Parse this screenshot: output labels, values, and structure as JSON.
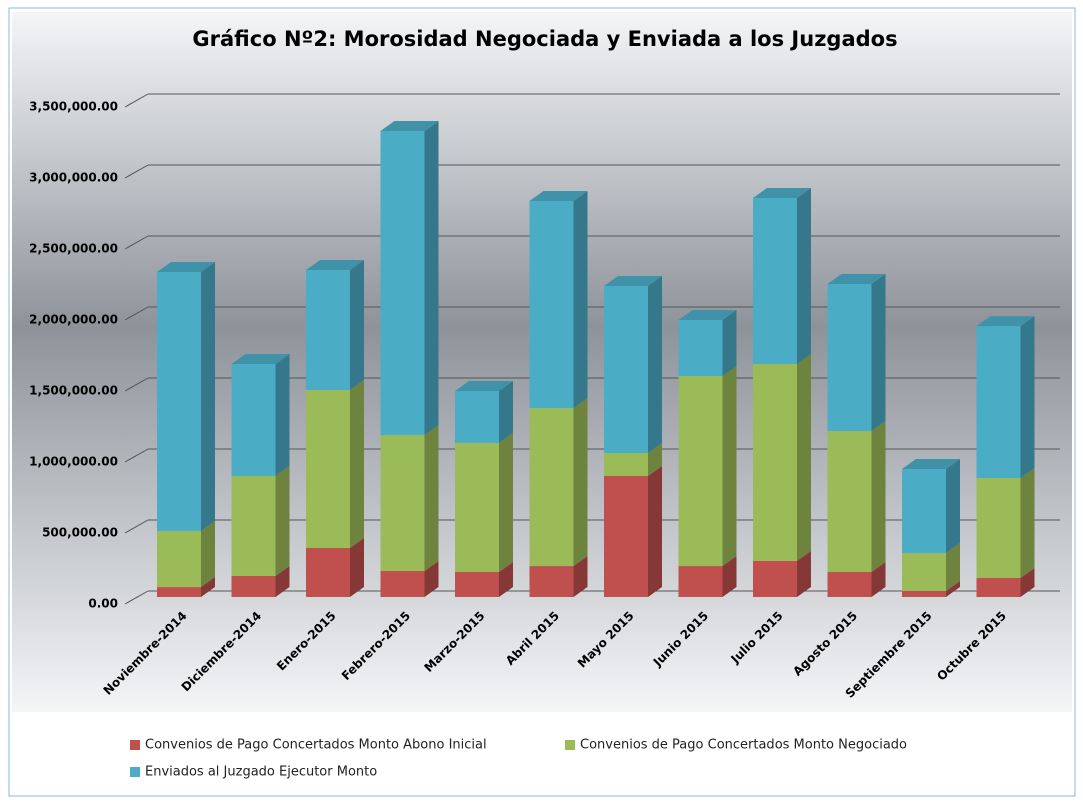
{
  "chart_data": {
    "type": "bar3d_stacked",
    "title": "Gráfico Nº2: Morosidad Negociada y Enviada a los Juzgados",
    "categories": [
      "Noviembre-2014",
      "Diciembre-2014",
      "Enero-2015",
      "Febrero-2015",
      "Marzo-2015",
      "Abril 2015",
      "Mayo 2015",
      "Junio 2015",
      "Julio 2015",
      "Agosto 2015",
      "Septiembre 2015",
      "Octubre 2015"
    ],
    "series": [
      {
        "name": "Convenios de Pago Concertados Monto  Abono Inicial",
        "color": "#c0504d",
        "values": [
          70000,
          148000,
          345000,
          183000,
          176000,
          218000,
          852000,
          218000,
          254000,
          176000,
          42000,
          134000
        ]
      },
      {
        "name": "Convenios de Pago Concertados Monto  Negociado",
        "color": "#9bbb59",
        "values": [
          395000,
          704000,
          1113000,
          958000,
          909000,
          1113000,
          162000,
          1338000,
          1387000,
          993000,
          268000,
          704000
        ]
      },
      {
        "name": "Enviados al  Juzgado Ejecutor Monto",
        "color": "#4bacc6",
        "values": [
          1824000,
          789000,
          845000,
          2141000,
          366000,
          1458000,
          1176000,
          395000,
          1169000,
          1035000,
          591000,
          1070000
        ]
      }
    ],
    "ylim": [
      0,
      3500000
    ],
    "yticks": [
      {
        "value": 0,
        "label": "0.00"
      },
      {
        "value": 500000,
        "label": "500,000.00"
      },
      {
        "value": 1000000,
        "label": "1,000,000.00"
      },
      {
        "value": 1500000,
        "label": "1,500,000.00"
      },
      {
        "value": 2000000,
        "label": "2,000,000.00"
      },
      {
        "value": 2500000,
        "label": "2,500,000.00"
      },
      {
        "value": 3000000,
        "label": "3,000,000.00"
      },
      {
        "value": 3500000,
        "label": "3,500,000.00"
      }
    ],
    "grid": true
  }
}
